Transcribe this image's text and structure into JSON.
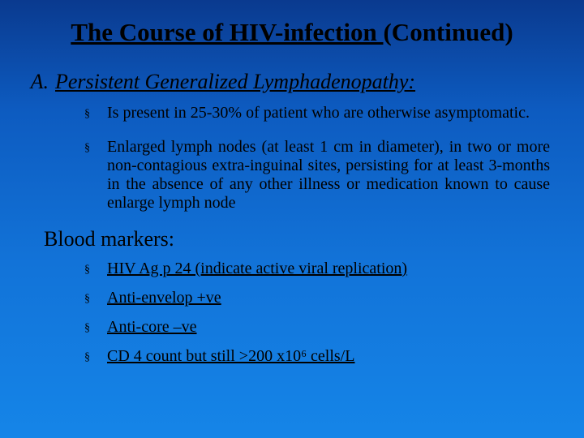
{
  "colors": {
    "background_gradient_stops": [
      "#0a3a8f",
      "#0d5bc0",
      "#1273d8",
      "#1585e8"
    ],
    "text_color": "#000000",
    "bullet_marker_color": "#000000"
  },
  "title": {
    "underlined": "The Course of HIV-infection ",
    "rest": "(Continued)",
    "font_size": 31,
    "font_weight": "bold"
  },
  "sectionA": {
    "letter": "A.",
    "heading": "Persistent Generalized Lymphadenopathy:",
    "font_size": 26,
    "italic": true,
    "underline": true,
    "bullets": [
      "Is present in 25-30% of patient who are otherwise asymptomatic.",
      "Enlarged lymph nodes (at least 1 cm in diameter), in two or more non-contagious extra-inguinal sites, persisting for at least 3-months in the absence of any other illness or medication  known to cause enlarge lymph node"
    ],
    "bullet_font_size": 20,
    "bullet_marker": "§"
  },
  "bloodMarkers": {
    "heading": "Blood markers:",
    "font_size": 26,
    "bullets_underlined": true,
    "bullets": [
      "HIV Ag p 24 (indicate active viral replication)",
      "Anti-envelop +ve",
      "Anti-core –ve",
      "CD 4 count but still >200 x10⁶ cells/L"
    ],
    "bullet_font_size": 20,
    "bullet_marker": "§"
  }
}
